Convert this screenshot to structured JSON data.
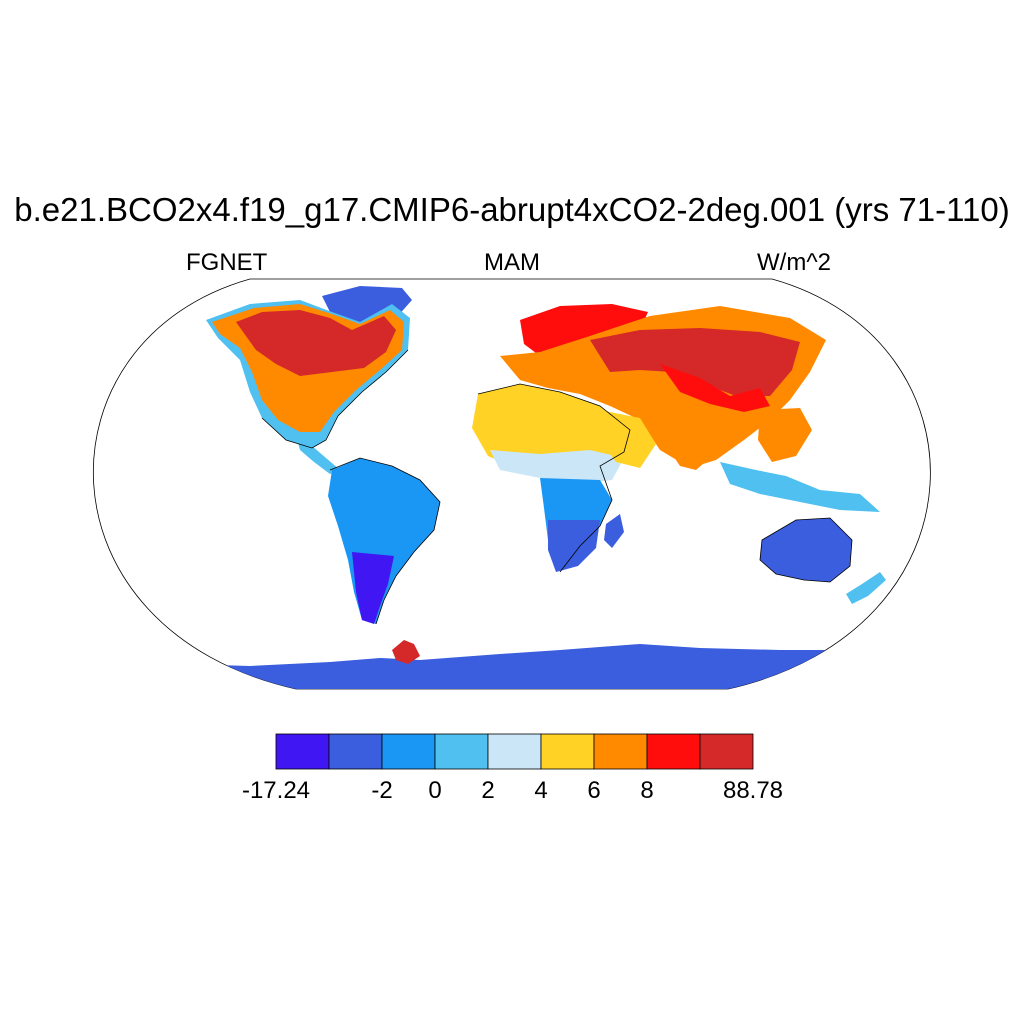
{
  "title": "b.e21.BCO2x4.f19_g17.CMIP6-abrupt4xCO2-2deg.001 (yrs 71-110)",
  "left_label": "FGNET",
  "center_label": "MAM",
  "right_label": "W/m^2",
  "colorbar": {
    "colors": [
      "#4016f2",
      "#3a5ede",
      "#1a96f5",
      "#4fc0f0",
      "#cbe6f7",
      "#ffd225",
      "#ff8a00",
      "#ff0d0d",
      "#d52828"
    ],
    "tick_labels": [
      "-17.24",
      "",
      "-2",
      "0",
      "2",
      "4",
      "6",
      "8",
      "",
      "88.78"
    ]
  },
  "map_regions": [
    {
      "name": "north-america-arctic",
      "color": "#d52828"
    },
    {
      "name": "north-america-central",
      "color": "#ff8a00"
    },
    {
      "name": "south-america",
      "color": "#1a96f5"
    },
    {
      "name": "africa-north",
      "color": "#ffd225"
    },
    {
      "name": "africa-south",
      "color": "#3a5ede"
    },
    {
      "name": "eurasia",
      "color": "#ff8a00"
    },
    {
      "name": "siberia",
      "color": "#d52828"
    },
    {
      "name": "australia",
      "color": "#3a5ede"
    },
    {
      "name": "antarctica",
      "color": "#3a5ede"
    },
    {
      "name": "greenland",
      "color": "#3a5ede"
    }
  ]
}
